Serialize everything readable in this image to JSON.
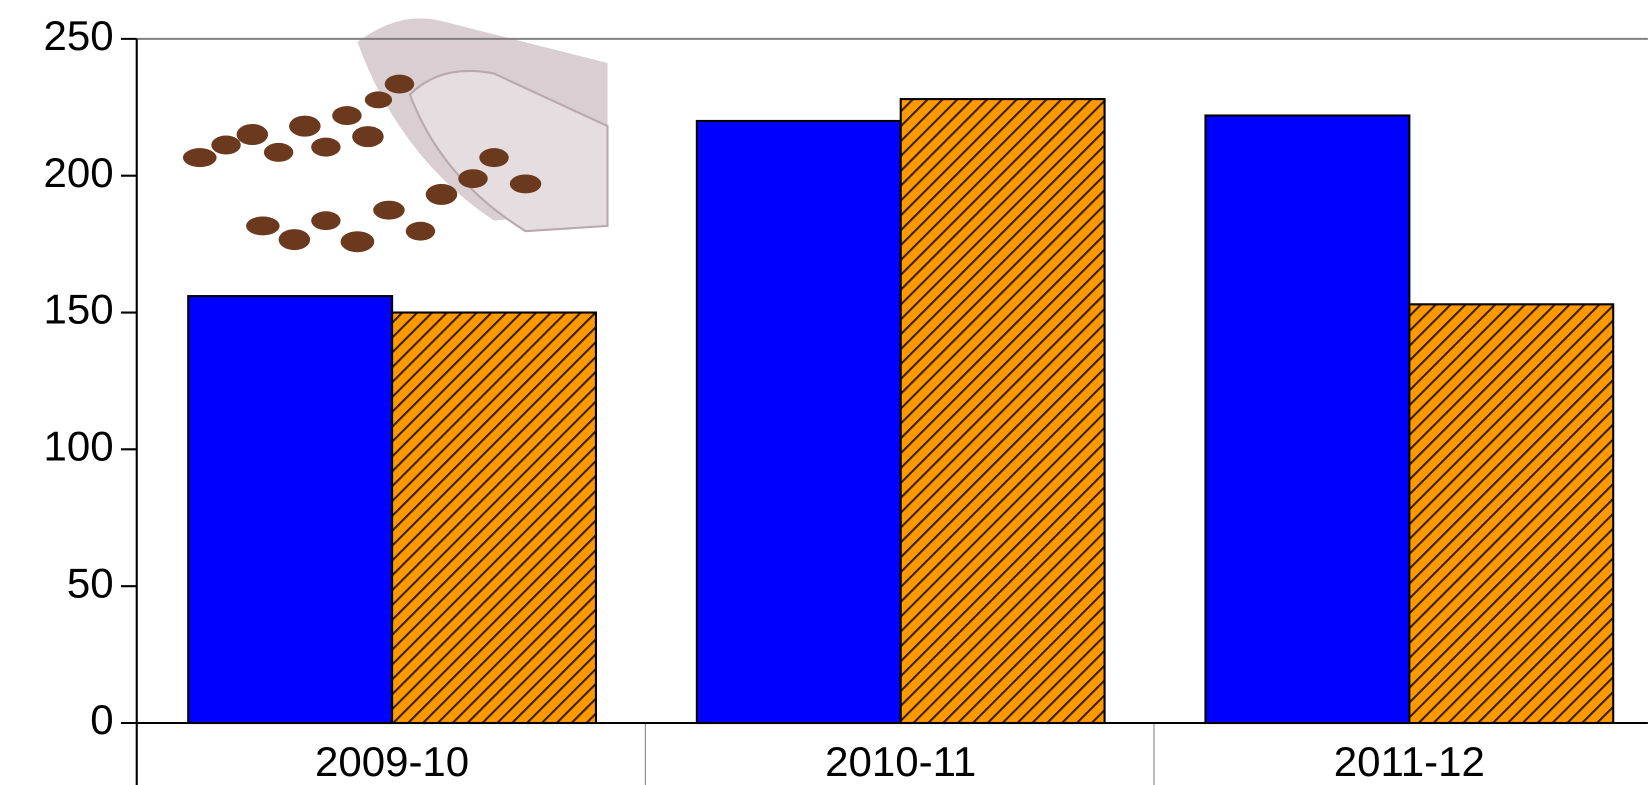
{
  "chart_data": {
    "type": "bar",
    "categories": [
      "2009-10",
      "2010-11",
      "2011-12"
    ],
    "series": [
      {
        "color": "#0000ff",
        "values": [
          156,
          220,
          222
        ]
      },
      {
        "color": "#ff9900",
        "hatch": true,
        "values": [
          150,
          228,
          153
        ]
      }
    ],
    "ylim": [
      0,
      250
    ],
    "yticks": [
      0,
      50,
      100,
      150,
      200,
      250
    ]
  }
}
